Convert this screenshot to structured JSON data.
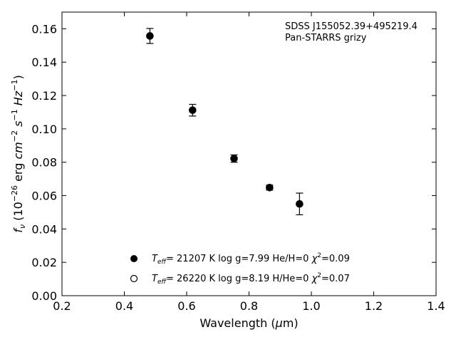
{
  "chart_data": {
    "type": "scatter",
    "xlabel_pre": "Wavelength (",
    "xlabel_mu": "μ",
    "xlabel_post": "m)",
    "ylabel": {
      "f": "f",
      "nu": "ν",
      "open": " (10",
      "e1": "−26",
      "erg": " erg ",
      "cm": "cm",
      "e2": "−2",
      "s": " s",
      "e3": "−1",
      "hz": " Hz",
      "e4": "−1",
      "close": ")"
    },
    "xlim": [
      0.2,
      1.4
    ],
    "ylim": [
      0.0,
      0.17
    ],
    "xticks": [
      "0.2",
      "0.4",
      "0.6",
      "0.8",
      "1.0",
      "1.2",
      "1.4"
    ],
    "yticks": [
      "0.00",
      "0.02",
      "0.04",
      "0.06",
      "0.08",
      "0.10",
      "0.12",
      "0.14",
      "0.16"
    ],
    "annotation": [
      "SDSS J155052.39+495219.4",
      "Pan-STARRS grizy"
    ],
    "series": [
      {
        "marker": "filled-circle",
        "points": [
          {
            "x": 0.482,
            "y": 0.1557,
            "err": 0.0045
          },
          {
            "x": 0.619,
            "y": 0.1112,
            "err": 0.0035
          },
          {
            "x": 0.752,
            "y": 0.0822,
            "err": 0.0022
          },
          {
            "x": 0.866,
            "y": 0.0648,
            "err": 0.0015
          },
          {
            "x": 0.962,
            "y": 0.055,
            "err": 0.0065
          }
        ]
      }
    ],
    "legend": [
      {
        "marker": "filled",
        "t": "T",
        "sub": "eff",
        "text": "= 21207 K  log g=7.99  He/H=0  ",
        "chi": "χ",
        "sup": "2",
        "end": "=0.09"
      },
      {
        "marker": "open",
        "t": "T",
        "sub": "eff",
        "text": "= 26220 K  log g=8.19  H/He=0  ",
        "chi": "χ",
        "sup": "2",
        "end": "=0.07"
      }
    ],
    "legend_position": "lower-center",
    "grid": false
  }
}
